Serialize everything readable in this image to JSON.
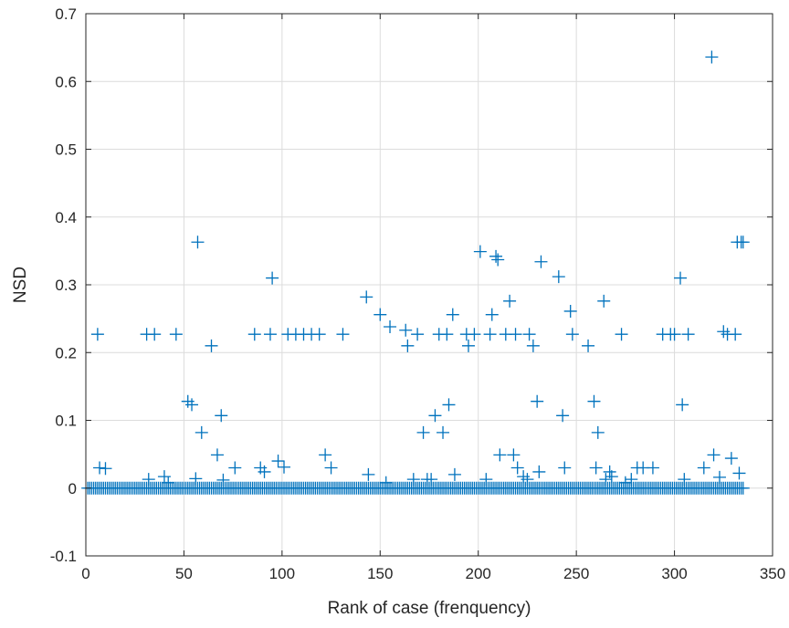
{
  "chart_data": {
    "type": "scatter",
    "marker": "plus",
    "marker_color": "#0072BD",
    "xlabel": "Rank of case (frenquency)",
    "ylabel": "NSD",
    "xlim": [
      0,
      350
    ],
    "ylim": [
      -0.1,
      0.7
    ],
    "x_ticks": [
      0,
      50,
      100,
      150,
      200,
      250,
      300,
      350
    ],
    "y_ticks": [
      -0.1,
      0,
      0.1,
      0.2,
      0.3,
      0.4,
      0.5,
      0.6,
      0.7
    ],
    "x_tick_labels": [
      "0",
      "50",
      "100",
      "150",
      "200",
      "250",
      "300",
      "350"
    ],
    "y_tick_labels": [
      "-0.1",
      "0",
      "0.1",
      "0.2",
      "0.3",
      "0.4",
      "0.5",
      "0.6",
      "0.7"
    ],
    "grid": true,
    "zero_run": {
      "x_start": 1,
      "x_end": 335,
      "y": 0
    },
    "points": [
      [
        6,
        0.227
      ],
      [
        7,
        0.03
      ],
      [
        10,
        0.029
      ],
      [
        31,
        0.227
      ],
      [
        35,
        0.227
      ],
      [
        46,
        0.227
      ],
      [
        32,
        0.013
      ],
      [
        40,
        0.017
      ],
      [
        42,
        0.008
      ],
      [
        52,
        0.128
      ],
      [
        54,
        0.123
      ],
      [
        57,
        0.363
      ],
      [
        56,
        0.014
      ],
      [
        59,
        0.082
      ],
      [
        64,
        0.21
      ],
      [
        67,
        0.049
      ],
      [
        69,
        0.107
      ],
      [
        70,
        0.012
      ],
      [
        76,
        0.03
      ],
      [
        86,
        0.227
      ],
      [
        89,
        0.03
      ],
      [
        91,
        0.024
      ],
      [
        94,
        0.227
      ],
      [
        95,
        0.31
      ],
      [
        98,
        0.04
      ],
      [
        101,
        0.031
      ],
      [
        103,
        0.227
      ],
      [
        107,
        0.227
      ],
      [
        111,
        0.227
      ],
      [
        115,
        0.227
      ],
      [
        119,
        0.227
      ],
      [
        122,
        0.049
      ],
      [
        125,
        0.03
      ],
      [
        131,
        0.227
      ],
      [
        143,
        0.282
      ],
      [
        144,
        0.02
      ],
      [
        150,
        0.256
      ],
      [
        153,
        0.008
      ],
      [
        155,
        0.238
      ],
      [
        163,
        0.233
      ],
      [
        164,
        0.21
      ],
      [
        167,
        0.013
      ],
      [
        169,
        0.227
      ],
      [
        172,
        0.082
      ],
      [
        174,
        0.013
      ],
      [
        176,
        0.013
      ],
      [
        178,
        0.107
      ],
      [
        180,
        0.227
      ],
      [
        182,
        0.082
      ],
      [
        184,
        0.227
      ],
      [
        185,
        0.123
      ],
      [
        187,
        0.256
      ],
      [
        188,
        0.02
      ],
      [
        194,
        0.227
      ],
      [
        195,
        0.21
      ],
      [
        198,
        0.227
      ],
      [
        201,
        0.349
      ],
      [
        204,
        0.013
      ],
      [
        206,
        0.227
      ],
      [
        207,
        0.256
      ],
      [
        209,
        0.342
      ],
      [
        210,
        0.337
      ],
      [
        211,
        0.049
      ],
      [
        214,
        0.227
      ],
      [
        216,
        0.276
      ],
      [
        218,
        0.049
      ],
      [
        219,
        0.227
      ],
      [
        220,
        0.03
      ],
      [
        223,
        0.017
      ],
      [
        225,
        0.013
      ],
      [
        226,
        0.227
      ],
      [
        228,
        0.21
      ],
      [
        230,
        0.128
      ],
      [
        231,
        0.024
      ],
      [
        232,
        0.334
      ],
      [
        241,
        0.312
      ],
      [
        243,
        0.107
      ],
      [
        244,
        0.03
      ],
      [
        247,
        0.261
      ],
      [
        248,
        0.227
      ],
      [
        256,
        0.21
      ],
      [
        259,
        0.128
      ],
      [
        260,
        0.03
      ],
      [
        261,
        0.082
      ],
      [
        264,
        0.276
      ],
      [
        265,
        0.013
      ],
      [
        267,
        0.024
      ],
      [
        268,
        0.017
      ],
      [
        273,
        0.227
      ],
      [
        275,
        0.008
      ],
      [
        278,
        0.013
      ],
      [
        281,
        0.03
      ],
      [
        284,
        0.03
      ],
      [
        289,
        0.03
      ],
      [
        294,
        0.227
      ],
      [
        298,
        0.227
      ],
      [
        300,
        0.227
      ],
      [
        303,
        0.31
      ],
      [
        304,
        0.123
      ],
      [
        305,
        0.013
      ],
      [
        307,
        0.227
      ],
      [
        315,
        0.03
      ],
      [
        319,
        0.636
      ],
      [
        320,
        0.049
      ],
      [
        323,
        0.016
      ],
      [
        325,
        0.231
      ],
      [
        327,
        0.227
      ],
      [
        329,
        0.044
      ],
      [
        331,
        0.227
      ],
      [
        332,
        0.363
      ],
      [
        333,
        0.022
      ],
      [
        334,
        0.363
      ],
      [
        335,
        0.363
      ]
    ]
  }
}
